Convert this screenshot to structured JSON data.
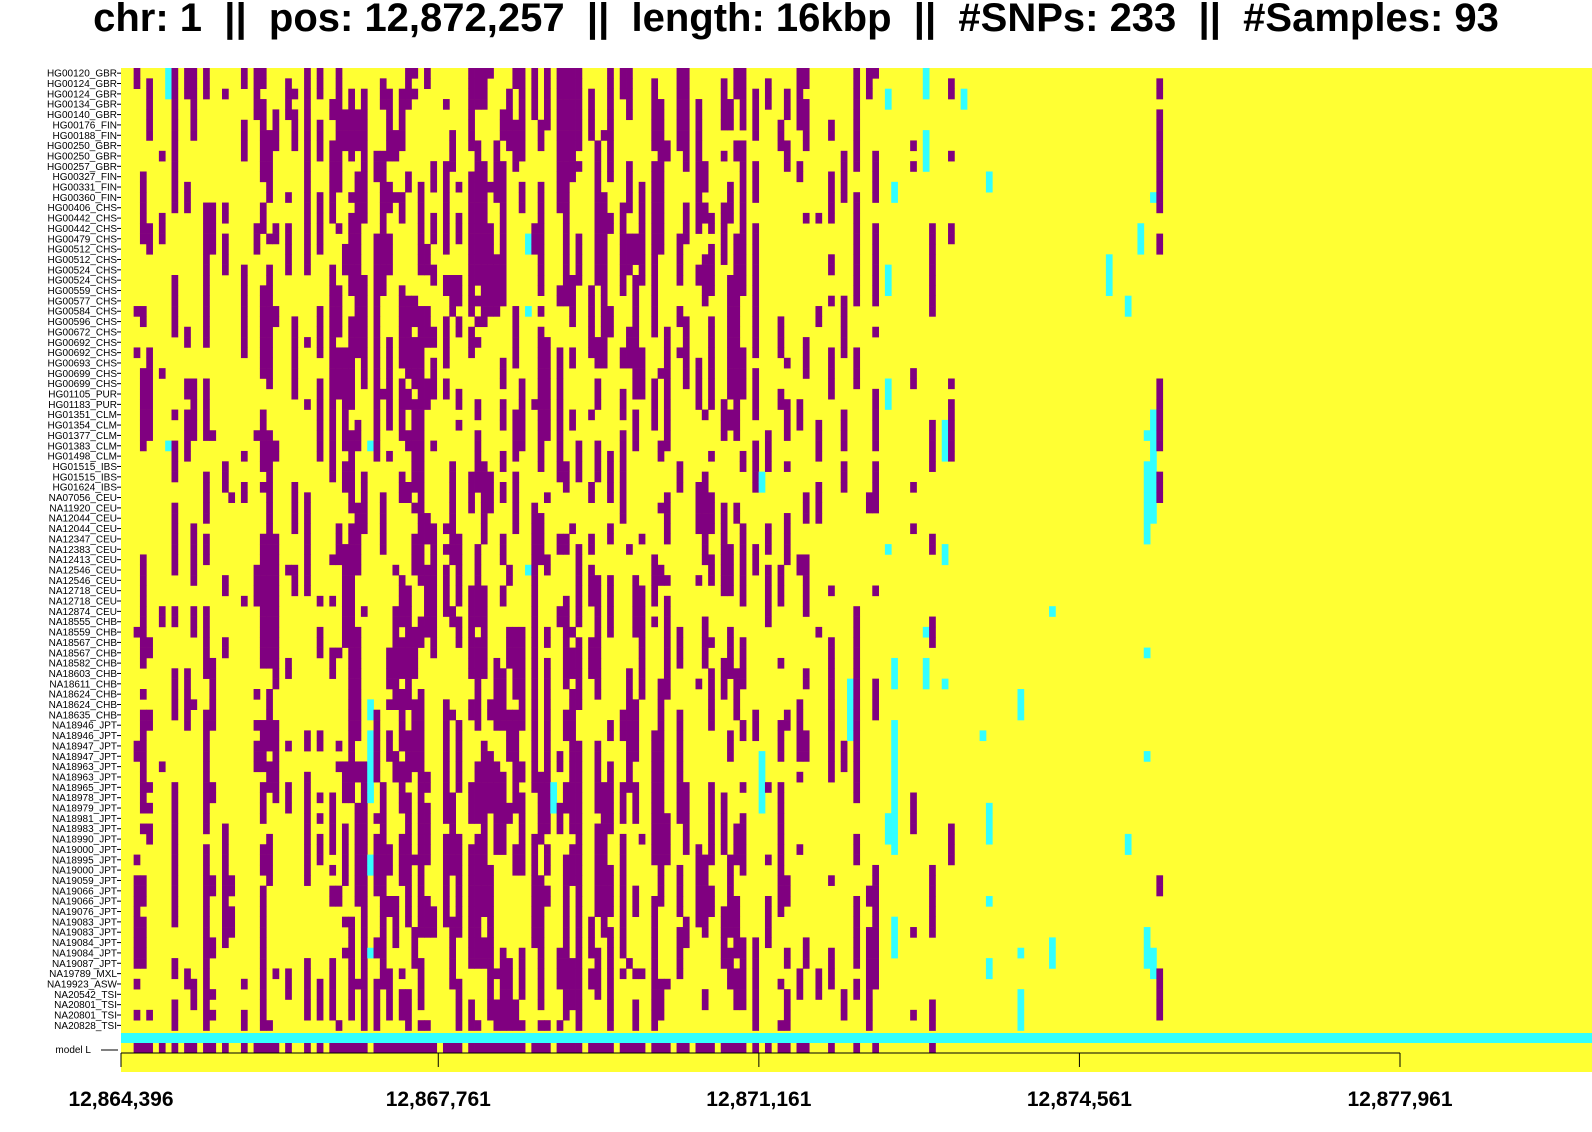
{
  "chart_data": {
    "type": "heatmap",
    "title_parts": {
      "chr_label": "chr: ",
      "chr": "1",
      "pos_label": "pos: ",
      "pos": "12,872,257",
      "length_label": "length: ",
      "length": "16kbp",
      "snps_label": "#SNPs: ",
      "snps": "233",
      "samples_label": "#Samples: ",
      "samples": "93",
      "separator": "||"
    },
    "xrange": [
      12864396,
      12878396
    ],
    "xticks": [
      {
        "value": 12864396,
        "label": "12,864,396"
      },
      {
        "value": 12867761,
        "label": "12,867,761"
      },
      {
        "value": 12871161,
        "label": "12,871,161"
      },
      {
        "value": 12874561,
        "label": "12,874,561"
      },
      {
        "value": 12877961,
        "label": "12,877,961"
      }
    ],
    "n_snps": 233,
    "samples": [
      "HG00120_GBR",
      "HG00124_GBR",
      "HG00124_GBR",
      "HG00134_GBR",
      "HG00140_GBR",
      "HG00176_FIN",
      "HG00188_FIN",
      "HG00250_GBR",
      "HG00250_GBR",
      "HG00257_GBR",
      "HG00327_FIN",
      "HG00331_FIN",
      "HG00360_FIN",
      "HG00406_CHS",
      "HG00442_CHS",
      "HG00442_CHS",
      "HG00479_CHS",
      "HG00512_CHS",
      "HG00512_CHS",
      "HG00524_CHS",
      "HG00524_CHS",
      "HG00559_CHS",
      "HG00577_CHS",
      "HG00584_CHS",
      "HG00596_CHS",
      "HG00672_CHS",
      "HG00692_CHS",
      "HG00692_CHS",
      "HG00693_CHS",
      "HG00699_CHS",
      "HG00699_CHS",
      "HG01105_PUR",
      "HG01183_PUR",
      "HG01351_CLM",
      "HG01354_CLM",
      "HG01377_CLM",
      "HG01383_CLM",
      "HG01498_CLM",
      "HG01515_IBS",
      "HG01515_IBS",
      "HG01624_IBS",
      "NA07056_CEU",
      "NA11920_CEU",
      "NA12044_CEU",
      "NA12044_CEU",
      "NA12347_CEU",
      "NA12383_CEU",
      "NA12413_CEU",
      "NA12546_CEU",
      "NA12546_CEU",
      "NA12718_CEU",
      "NA12718_CEU",
      "NA12874_CEU",
      "NA18555_CHB",
      "NA18559_CHB",
      "NA18567_CHB",
      "NA18567_CHB",
      "NA18582_CHB",
      "NA18603_CHB",
      "NA18611_CHB",
      "NA18624_CHB",
      "NA18624_CHB",
      "NA18635_CHB",
      "NA18946_JPT",
      "NA18946_JPT",
      "NA18947_JPT",
      "NA18947_JPT",
      "NA18963_JPT",
      "NA18963_JPT",
      "NA18965_JPT",
      "NA18978_JPT",
      "NA18979_JPT",
      "NA18981_JPT",
      "NA18983_JPT",
      "NA18990_JPT",
      "NA19000_JPT",
      "NA18995_JPT",
      "NA19000_JPT",
      "NA19059_JPT",
      "NA19066_JPT",
      "NA19066_JPT",
      "NA19076_JPT",
      "NA19083_JPT",
      "NA19083_JPT",
      "NA19084_JPT",
      "NA19084_JPT",
      "NA19087_JPT",
      "NA19789_MXL",
      "NA19923_ASW",
      "NA20542_TSI",
      "NA20801_TSI",
      "NA20801_TSI",
      "NA20828_TSI"
    ],
    "model_label": "model L",
    "colors": {
      "ref": "#ffff33",
      "alt": "#800080",
      "model": "#33ffff",
      "axis": "#000000"
    },
    "columns": [
      {
        "c": 2,
        "t": "A",
        "r": 0.35,
        "s": 3
      },
      {
        "c": 3,
        "t": "A",
        "r": 0.55,
        "s": 5
      },
      {
        "c": 4,
        "t": "A",
        "r": 0.4,
        "s": 7
      },
      {
        "c": 6,
        "t": "A",
        "r": 0.3,
        "s": 9
      },
      {
        "c": 7,
        "t": "C",
        "r": 0.1,
        "s": 11
      },
      {
        "c": 8,
        "t": "A",
        "r": 0.5,
        "s": 13
      },
      {
        "c": 10,
        "t": "A",
        "r": 0.45,
        "s": 15
      },
      {
        "c": 11,
        "t": "A",
        "r": 0.3,
        "s": 17
      },
      {
        "c": 13,
        "t": "A",
        "r": 0.6,
        "s": 19
      },
      {
        "c": 14,
        "t": "A",
        "r": 0.35,
        "s": 21
      },
      {
        "c": 16,
        "t": "A",
        "r": 0.5,
        "s": 23
      },
      {
        "c": 17,
        "t": "A",
        "r": 0.25,
        "s": 25
      },
      {
        "c": 19,
        "t": "A",
        "r": 0.45,
        "s": 27
      },
      {
        "c": 21,
        "t": "A",
        "r": 0.3,
        "s": 29
      },
      {
        "c": 22,
        "t": "A",
        "r": 0.55,
        "s": 31
      },
      {
        "c": 23,
        "t": "A",
        "r": 0.5,
        "s": 33
      },
      {
        "c": 24,
        "t": "A",
        "r": 0.4,
        "s": 35
      },
      {
        "c": 26,
        "t": "A",
        "r": 0.3,
        "s": 37
      },
      {
        "c": 27,
        "t": "A",
        "r": 0.25,
        "s": 39
      },
      {
        "c": 29,
        "t": "A",
        "r": 0.35,
        "s": 41
      },
      {
        "c": 31,
        "t": "A",
        "r": 0.3,
        "s": 43
      },
      {
        "c": 33,
        "t": "A",
        "r": 0.45,
        "s": 45
      },
      {
        "c": 34,
        "t": "A",
        "r": 0.5,
        "s": 47
      },
      {
        "c": 35,
        "t": "A",
        "r": 0.55,
        "s": 49
      },
      {
        "c": 36,
        "t": "A",
        "r": 0.6,
        "s": 51
      },
      {
        "c": 37,
        "t": "A",
        "r": 0.6,
        "s": 53
      },
      {
        "c": 38,
        "t": "A",
        "r": 0.55,
        "s": 55
      },
      {
        "c": 39,
        "t": "C",
        "r": 0.08,
        "s": 57
      },
      {
        "c": 40,
        "t": "A",
        "r": 0.5,
        "s": 59
      },
      {
        "c": 41,
        "t": "A",
        "r": 0.45,
        "s": 61
      },
      {
        "c": 42,
        "t": "A",
        "r": 0.55,
        "s": 63
      },
      {
        "c": 43,
        "t": "A",
        "r": 0.5,
        "s": 65
      },
      {
        "c": 44,
        "t": "A",
        "r": 0.45,
        "s": 67
      },
      {
        "c": 45,
        "t": "A",
        "r": 0.55,
        "s": 69
      },
      {
        "c": 46,
        "t": "A",
        "r": 0.5,
        "s": 71
      },
      {
        "c": 47,
        "t": "A",
        "r": 0.6,
        "s": 73
      },
      {
        "c": 48,
        "t": "A",
        "r": 0.5,
        "s": 75
      },
      {
        "c": 49,
        "t": "A",
        "r": 0.45,
        "s": 77
      },
      {
        "c": 51,
        "t": "A",
        "r": 0.55,
        "s": 79
      },
      {
        "c": 52,
        "t": "A",
        "r": 0.5,
        "s": 81
      },
      {
        "c": 53,
        "t": "A",
        "r": 0.5,
        "s": 83
      },
      {
        "c": 55,
        "t": "A",
        "r": 0.55,
        "s": 85
      },
      {
        "c": 56,
        "t": "A",
        "r": 0.6,
        "s": 87
      },
      {
        "c": 57,
        "t": "A",
        "r": 0.55,
        "s": 89
      },
      {
        "c": 58,
        "t": "A",
        "r": 0.45,
        "s": 91
      },
      {
        "c": 59,
        "t": "A",
        "r": 0.5,
        "s": 93
      },
      {
        "c": 60,
        "t": "A",
        "r": 0.55,
        "s": 95
      },
      {
        "c": 61,
        "t": "A",
        "r": 0.45,
        "s": 97
      },
      {
        "c": 62,
        "t": "A",
        "r": 0.5,
        "s": 99
      },
      {
        "c": 63,
        "t": "A",
        "r": 0.45,
        "s": 101
      },
      {
        "c": 64,
        "t": "C",
        "r": 0.1,
        "s": 103
      },
      {
        "c": 65,
        "t": "A",
        "r": 0.45,
        "s": 105
      },
      {
        "c": 66,
        "t": "A",
        "r": 0.55,
        "s": 107
      },
      {
        "c": 67,
        "t": "A",
        "r": 0.5,
        "s": 109
      },
      {
        "c": 68,
        "t": "C",
        "r": 0.06,
        "s": 111
      },
      {
        "c": 69,
        "t": "A",
        "r": 0.5,
        "s": 113
      },
      {
        "c": 70,
        "t": "A",
        "r": 0.55,
        "s": 115
      },
      {
        "c": 71,
        "t": "A",
        "r": 0.45,
        "s": 117
      },
      {
        "c": 72,
        "t": "A",
        "r": 0.5,
        "s": 119
      },
      {
        "c": 74,
        "t": "A",
        "r": 0.5,
        "s": 121
      },
      {
        "c": 75,
        "t": "A",
        "r": 0.55,
        "s": 123
      },
      {
        "c": 76,
        "t": "A",
        "r": 0.45,
        "s": 125
      },
      {
        "c": 77,
        "t": "A",
        "r": 0.5,
        "s": 127
      },
      {
        "c": 79,
        "t": "A",
        "r": 0.45,
        "s": 129
      },
      {
        "c": 80,
        "t": "A",
        "r": 0.55,
        "s": 131
      },
      {
        "c": 81,
        "t": "A",
        "r": 0.5,
        "s": 133
      },
      {
        "c": 82,
        "t": "A",
        "r": 0.45,
        "s": 135
      },
      {
        "c": 84,
        "t": "A",
        "r": 0.5,
        "s": 137
      },
      {
        "c": 85,
        "t": "A",
        "r": 0.45,
        "s": 139
      },
      {
        "c": 86,
        "t": "A",
        "r": 0.4,
        "s": 141
      },
      {
        "c": 88,
        "t": "A",
        "r": 0.3,
        "s": 143
      },
      {
        "c": 89,
        "t": "A",
        "r": 0.35,
        "s": 145
      },
      {
        "c": 91,
        "t": "A",
        "r": 0.45,
        "s": 147
      },
      {
        "c": 92,
        "t": "A",
        "r": 0.4,
        "s": 149
      },
      {
        "c": 93,
        "t": "A",
        "r": 0.5,
        "s": 151
      },
      {
        "c": 95,
        "t": "A",
        "r": 0.45,
        "s": 153
      },
      {
        "c": 96,
        "t": "A",
        "r": 0.35,
        "s": 155
      },
      {
        "c": 97,
        "t": "A",
        "r": 0.5,
        "s": 157
      },
      {
        "c": 98,
        "t": "A",
        "r": 0.4,
        "s": 159
      },
      {
        "c": 100,
        "t": "A",
        "r": 0.4,
        "s": 161
      },
      {
        "c": 101,
        "t": "C",
        "r": 0.08,
        "s": 163
      },
      {
        "c": 102,
        "t": "A",
        "r": 0.3,
        "s": 165
      },
      {
        "c": 104,
        "t": "A",
        "r": 0.35,
        "s": 167
      },
      {
        "c": 105,
        "t": "A",
        "r": 0.3,
        "s": 169
      },
      {
        "c": 107,
        "t": "A",
        "r": 0.35,
        "s": 171
      },
      {
        "c": 108,
        "t": "A",
        "r": 0.3,
        "s": 173
      },
      {
        "c": 110,
        "t": "A",
        "r": 0.25,
        "s": 175
      },
      {
        "c": 112,
        "t": "A",
        "r": 0.4,
        "s": 177
      },
      {
        "c": 114,
        "t": "A",
        "r": 0.25,
        "s": 179
      },
      {
        "c": 115,
        "t": "C",
        "r": 0.08,
        "s": 181
      },
      {
        "c": 116,
        "t": "A",
        "r": 0.3,
        "s": 183
      },
      {
        "c": 118,
        "t": "A",
        "r": 0.25,
        "s": 185
      },
      {
        "c": 119,
        "t": "A",
        "r": 0.3,
        "s": 187
      },
      {
        "c": 121,
        "t": "C",
        "r": 0.12,
        "s": 189
      },
      {
        "c": 122,
        "t": "C",
        "r": 0.15,
        "s": 191
      },
      {
        "c": 124,
        "t": "C",
        "r": 0.1,
        "s": 193
      },
      {
        "c": 125,
        "t": "A",
        "r": 0.25,
        "s": 195
      },
      {
        "c": 127,
        "t": "C",
        "r": 0.1,
        "s": 197
      },
      {
        "c": 128,
        "t": "A",
        "r": 0.3,
        "s": 199
      },
      {
        "c": 130,
        "t": "C",
        "r": 0.06,
        "s": 201
      },
      {
        "c": 131,
        "t": "A",
        "r": 0.2,
        "s": 203
      },
      {
        "c": 133,
        "t": "C",
        "r": 0.06,
        "s": 205
      },
      {
        "c": 136,
        "t": "C",
        "r": 0.05,
        "s": 207
      },
      {
        "c": 137,
        "t": "C",
        "r": 0.06,
        "s": 209
      },
      {
        "c": 142,
        "t": "C",
        "r": 0.05,
        "s": 211
      },
      {
        "c": 147,
        "t": "C",
        "r": 0.05,
        "s": 213
      },
      {
        "c": 151,
        "t": "C",
        "r": 0.05,
        "s": 215
      },
      {
        "c": 156,
        "t": "C",
        "r": 0.06,
        "s": 217
      },
      {
        "c": 159,
        "t": "C",
        "r": 0.05,
        "s": 219
      },
      {
        "c": 161,
        "t": "C",
        "r": 0.05,
        "s": 221
      },
      {
        "c": 162,
        "t": "C",
        "r": 0.08,
        "s": 223
      },
      {
        "c": 163,
        "t": "C",
        "r": 0.06,
        "s": 225
      },
      {
        "c": 164,
        "t": "A",
        "r": 0.25,
        "s": 227
      }
    ]
  }
}
